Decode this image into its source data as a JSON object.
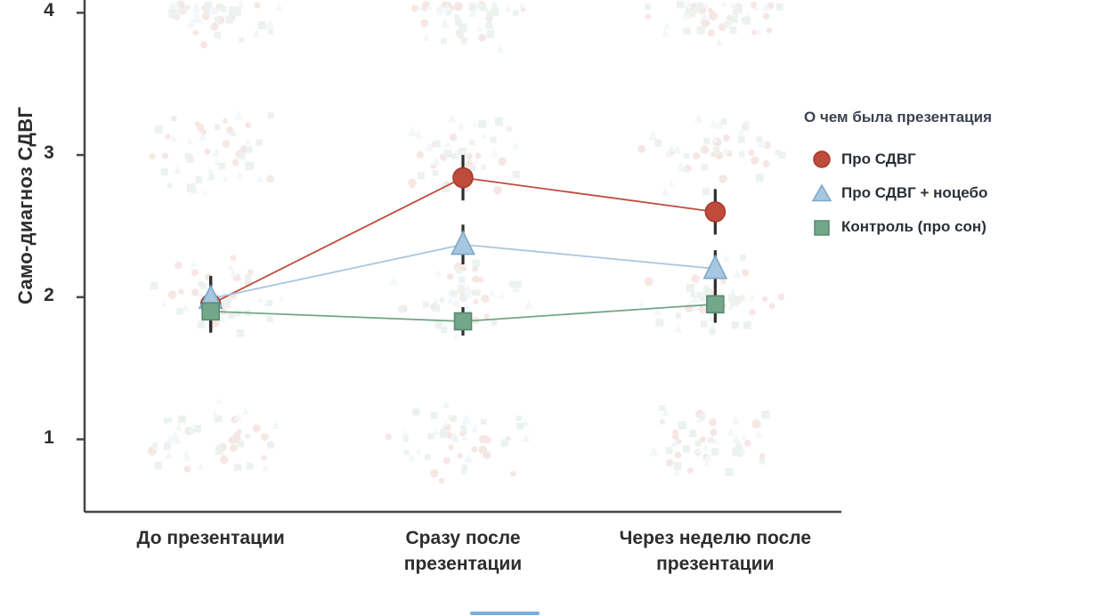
{
  "chart_data": {
    "type": "line",
    "title": "",
    "xlabel": "",
    "ylabel": "Само-диагноз СДВГ",
    "categories": [
      "До презентации",
      "Сразу после презентации",
      "Через неделю после презентации"
    ],
    "y_ticks": [
      4,
      3,
      2,
      1
    ],
    "ylim": [
      0.49,
      4.09
    ],
    "grid": false,
    "legend": {
      "title": "О чем была презентация",
      "position": "right"
    },
    "series": [
      {
        "name": "Про СДВГ",
        "marker": "circle",
        "color": "#bf4b3b",
        "stroke": "#a63a2c",
        "values": [
          1.95,
          2.84,
          2.6
        ],
        "errors": [
          0.2,
          0.16,
          0.16
        ]
      },
      {
        "name": "Про СДВГ + ноцебо",
        "marker": "triangle",
        "color": "#a7c6e0",
        "stroke": "#7ba7c9",
        "values": [
          1.99,
          2.37,
          2.2
        ],
        "errors": [
          0.15,
          0.14,
          0.13
        ]
      },
      {
        "name": "Контроль (про сон)",
        "marker": "square",
        "color": "#72a78a",
        "stroke": "#578b70",
        "values": [
          1.9,
          1.83,
          1.95
        ],
        "errors": [
          0.14,
          0.1,
          0.13
        ]
      }
    ],
    "background_jitter": {
      "description": "Faint individual-response points jittered around integer score levels 1-4 for each timepoint and group",
      "levels": [
        1,
        2,
        3,
        4
      ],
      "opacity": 0.13
    },
    "error_bar_color": "#2f2f2f",
    "axis_color": "#454545",
    "text_color": "#2d2d2d"
  }
}
